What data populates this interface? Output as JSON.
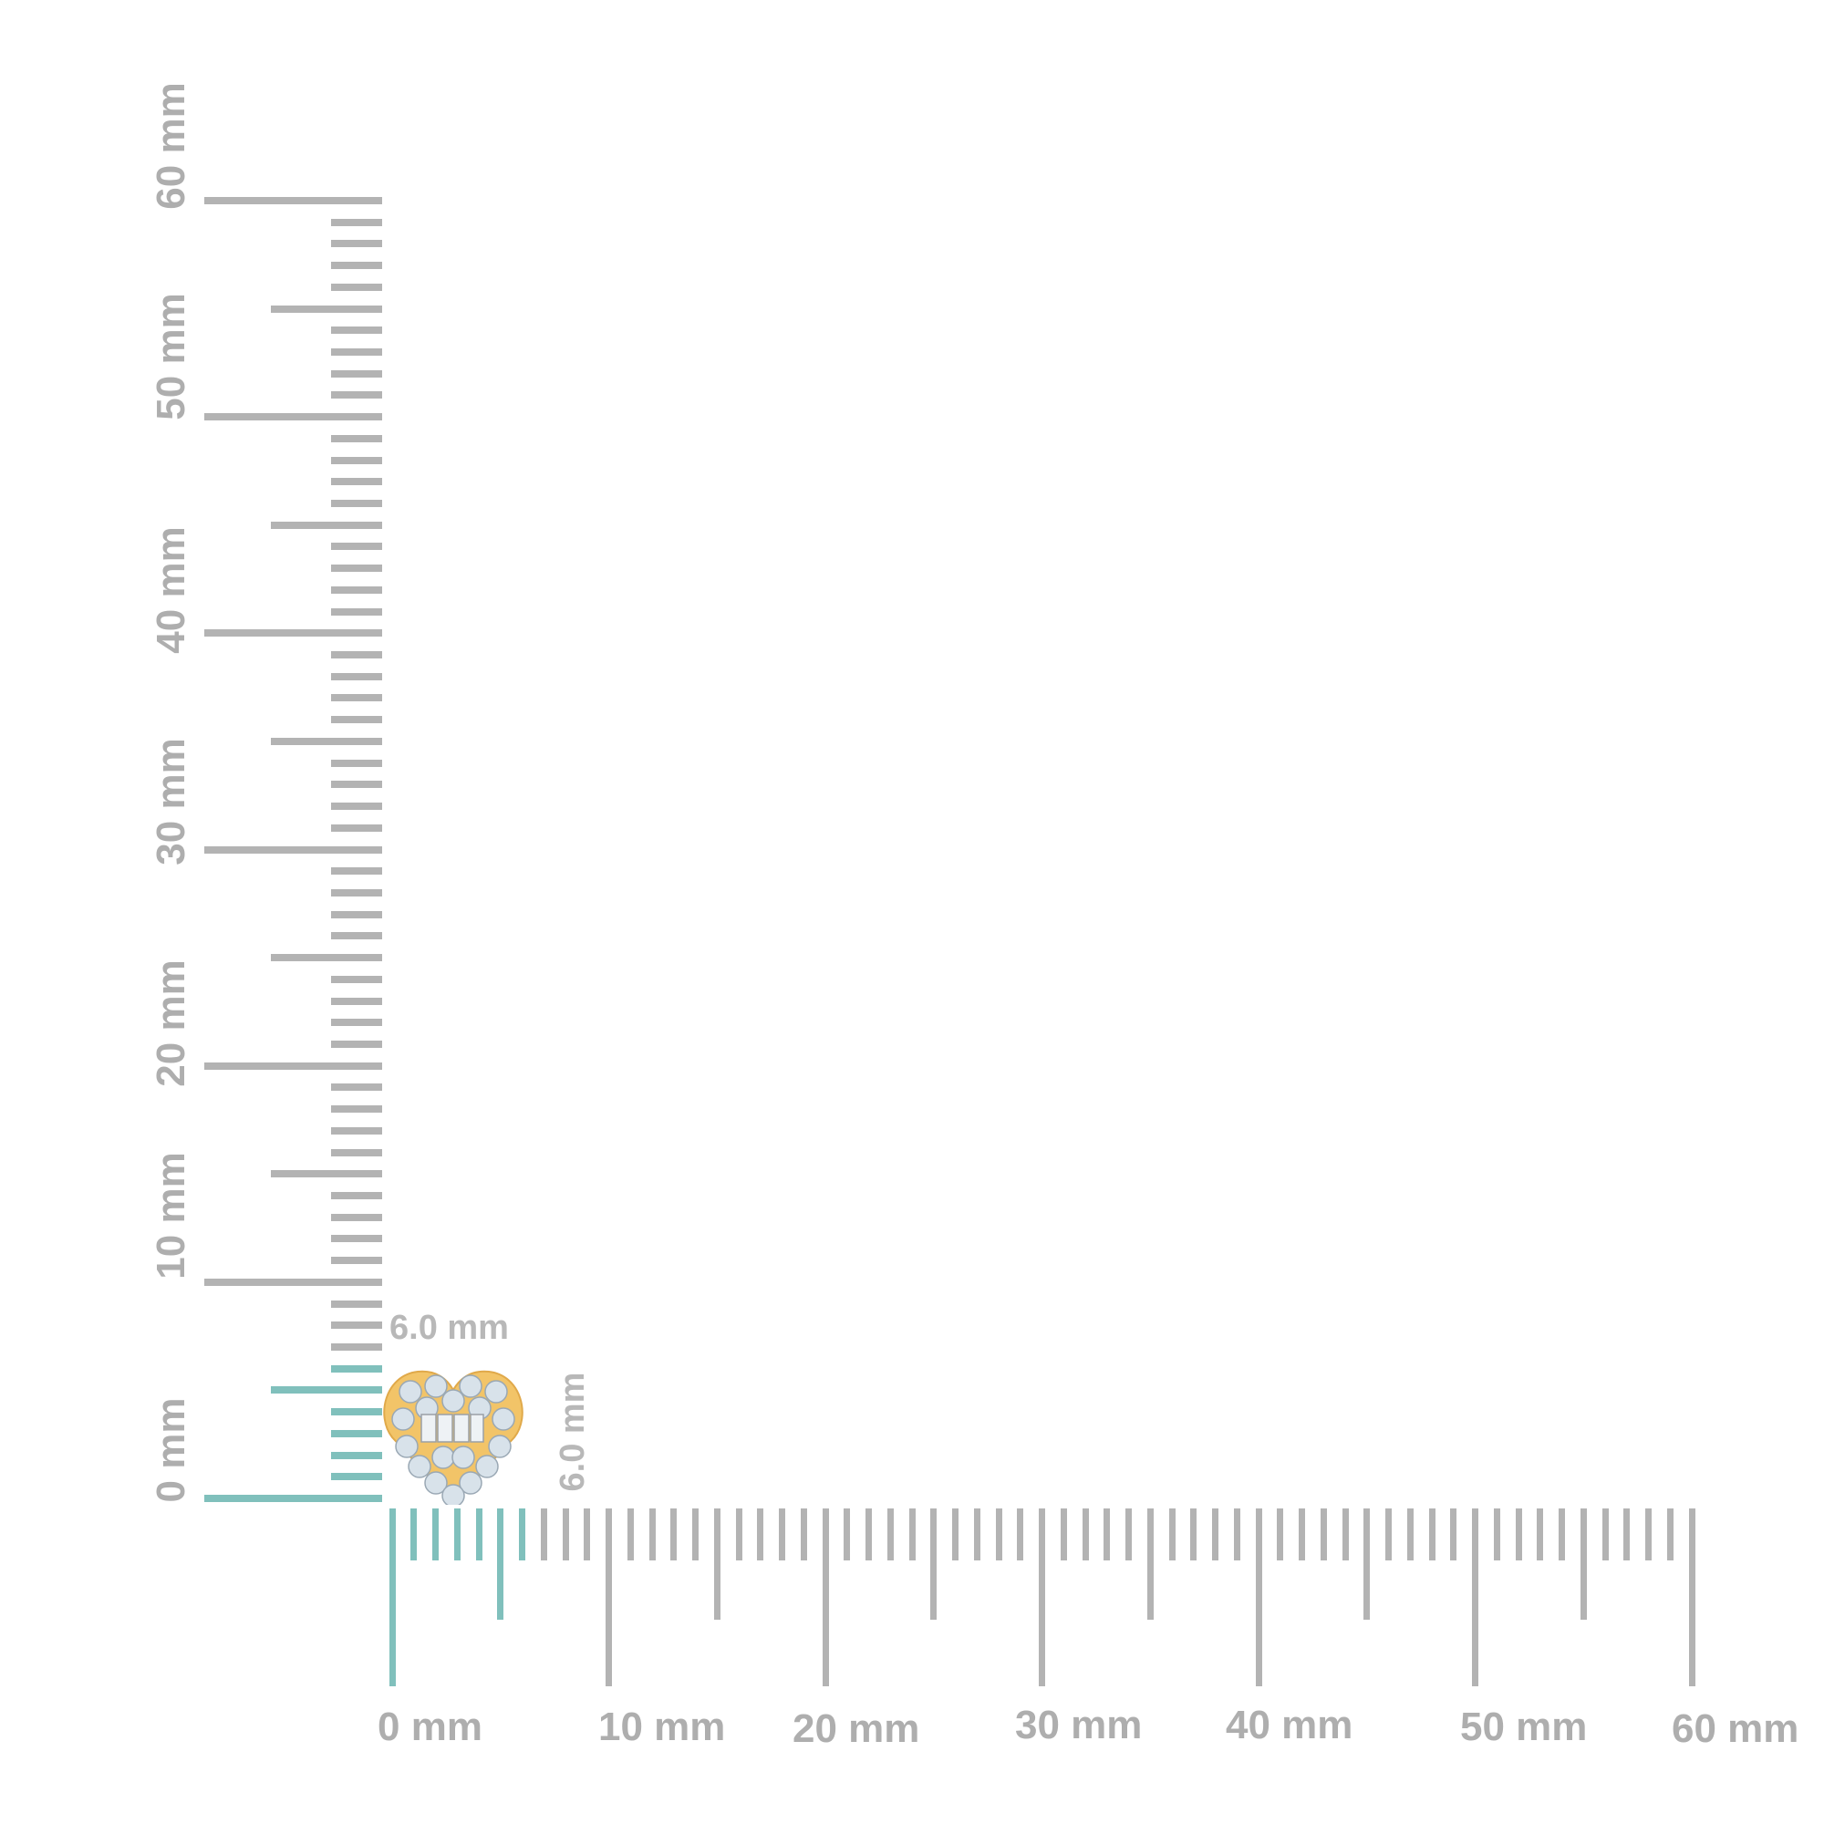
{
  "ruler": {
    "unit": "mm",
    "min": 0,
    "max": 60,
    "horizontal_labels": [
      "0 mm",
      "10 mm",
      "20 mm",
      "30 mm",
      "40 mm",
      "50 mm",
      "60 mm"
    ],
    "vertical_labels": [
      "0 mm",
      "10 mm",
      "20 mm",
      "30 mm",
      "40 mm",
      "50 mm",
      "60 mm"
    ],
    "highlight_mm": 6,
    "tick_color": "#b3b3b3",
    "highlight_color": "#80c0bc"
  },
  "product": {
    "name_icon": "heart-earring-icon",
    "width_label": "6.0 mm",
    "height_label": "6.0 mm",
    "metal_color": "#f2c468",
    "stone_color": "#d8e2ea"
  }
}
